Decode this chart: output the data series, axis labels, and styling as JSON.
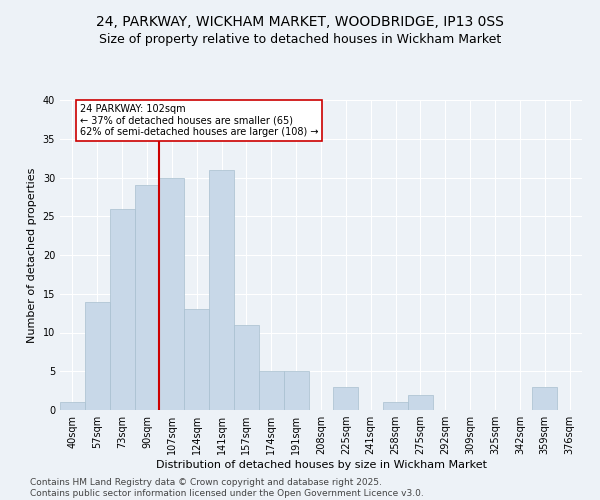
{
  "title1": "24, PARKWAY, WICKHAM MARKET, WOODBRIDGE, IP13 0SS",
  "title2": "Size of property relative to detached houses in Wickham Market",
  "xlabel": "Distribution of detached houses by size in Wickham Market",
  "ylabel": "Number of detached properties",
  "categories": [
    "40sqm",
    "57sqm",
    "73sqm",
    "90sqm",
    "107sqm",
    "124sqm",
    "141sqm",
    "157sqm",
    "174sqm",
    "191sqm",
    "208sqm",
    "225sqm",
    "241sqm",
    "258sqm",
    "275sqm",
    "292sqm",
    "309sqm",
    "325sqm",
    "342sqm",
    "359sqm",
    "376sqm"
  ],
  "values": [
    1,
    14,
    26,
    29,
    30,
    13,
    31,
    11,
    5,
    5,
    0,
    3,
    0,
    1,
    2,
    0,
    0,
    0,
    0,
    3,
    0
  ],
  "bar_color": "#c8d8e8",
  "bar_edge_color": "#a8bfcf",
  "bar_width": 1.0,
  "vline_x": 3.5,
  "vline_color": "#cc0000",
  "annotation_text": "24 PARKWAY: 102sqm\n← 37% of detached houses are smaller (65)\n62% of semi-detached houses are larger (108) →",
  "annotation_box_color": "#ffffff",
  "annotation_box_edge": "#cc0000",
  "ylim": [
    0,
    40
  ],
  "yticks": [
    0,
    5,
    10,
    15,
    20,
    25,
    30,
    35,
    40
  ],
  "footer": "Contains HM Land Registry data © Crown copyright and database right 2025.\nContains public sector information licensed under the Open Government Licence v3.0.",
  "bg_color": "#edf2f7",
  "grid_color": "#ffffff",
  "title_fontsize": 10,
  "subtitle_fontsize": 9,
  "axis_label_fontsize": 8,
  "tick_fontsize": 7,
  "annot_fontsize": 7,
  "footer_fontsize": 6.5
}
